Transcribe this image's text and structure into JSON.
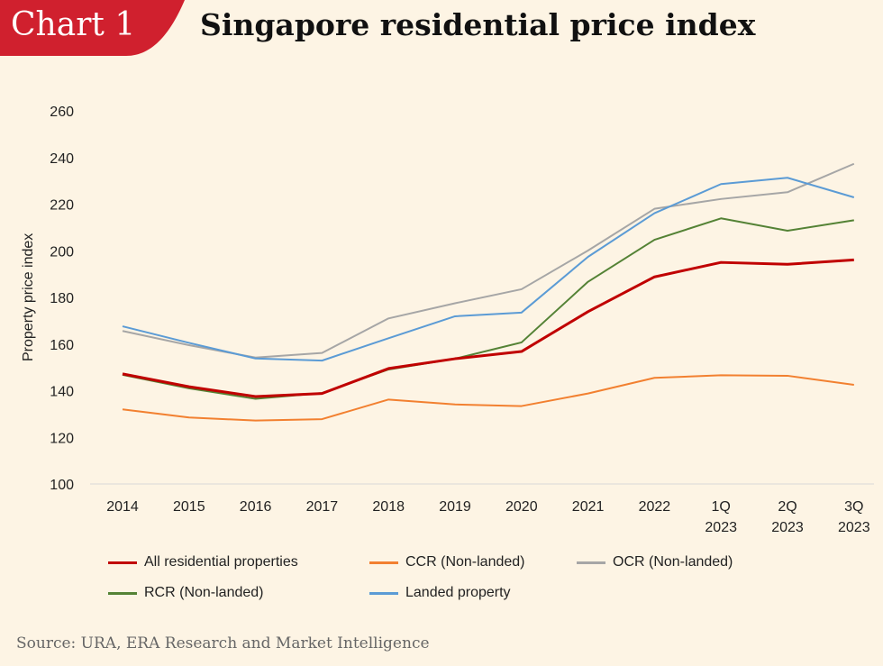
{
  "header": {
    "tab_label": "Chart 1",
    "title": "Singapore residential price index"
  },
  "source": "Source: URA, ERA Research and Market Intelligence",
  "chart_data": {
    "type": "line",
    "title": "Singapore residential price index",
    "ylabel": "Property price index",
    "xlabel": "",
    "ylim": [
      100,
      260
    ],
    "yticks": [
      100,
      120,
      140,
      160,
      180,
      200,
      220,
      240,
      260
    ],
    "grid": false,
    "legend": "bottom",
    "categories": [
      "2014",
      "2015",
      "2016",
      "2017",
      "2018",
      "2019",
      "2020",
      "2021",
      "2022",
      "1Q 2023",
      "2Q 2023",
      "3Q 2023"
    ],
    "series": [
      {
        "name": "All residential properties",
        "color": "#c00000",
        "values": [
          147.2,
          141.7,
          137.5,
          138.8,
          149.5,
          153.7,
          156.8,
          173.9,
          188.8,
          195.0,
          194.2,
          196.1
        ]
      },
      {
        "name": "CCR (Non-landed)",
        "color": "#f28030",
        "values": [
          132.0,
          128.5,
          127.2,
          127.8,
          136.2,
          134.1,
          133.4,
          138.8,
          145.5,
          146.6,
          146.4,
          142.5
        ]
      },
      {
        "name": "OCR (Non-landed)",
        "color": "#a6a6a6",
        "values": [
          165.6,
          159.5,
          154.2,
          156.2,
          171.0,
          177.5,
          183.5,
          200.1,
          218.0,
          222.2,
          225.1,
          237.3
        ]
      },
      {
        "name": "RCR (Non-landed)",
        "color": "#548235",
        "values": [
          146.8,
          141.0,
          136.5,
          139.0,
          149.1,
          153.7,
          160.7,
          186.7,
          204.7,
          213.9,
          208.6,
          213.1
        ]
      },
      {
        "name": "Landed property",
        "color": "#5b9bd5",
        "values": [
          167.6,
          160.5,
          153.8,
          152.9,
          162.5,
          171.9,
          173.5,
          197.4,
          216.1,
          228.6,
          231.3,
          222.9
        ]
      }
    ]
  }
}
